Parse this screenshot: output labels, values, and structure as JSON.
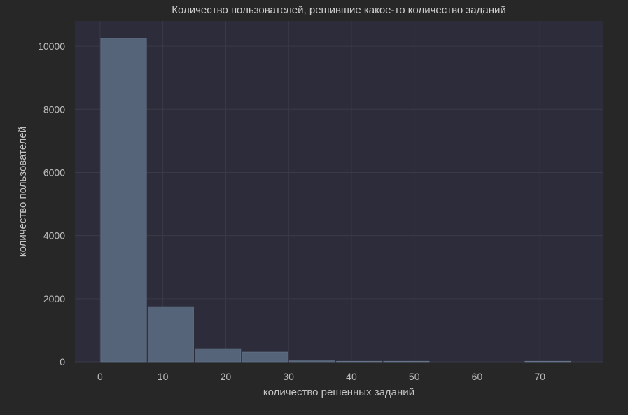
{
  "colors": {
    "figure_background": "#272727",
    "plot_background": "#2c2c3a",
    "grid": "#3a3a48",
    "bar_fill": "#556479",
    "bar_edge": "#6a7a90",
    "text": "#c4c4c4"
  },
  "chart_data": {
    "type": "bar",
    "title": "Количество пользователей, решившие какое-то количество заданий",
    "xlabel": "количество решенных заданий",
    "ylabel": "количество пользователей",
    "xlim": [
      -4,
      80
    ],
    "ylim": [
      0,
      10800
    ],
    "xticks": [
      0,
      10,
      20,
      30,
      40,
      50,
      60,
      70
    ],
    "yticks": [
      0,
      2000,
      4000,
      6000,
      8000,
      10000
    ],
    "grid": true,
    "legend": "none",
    "bins": [
      {
        "x0": 0,
        "x1": 7.5,
        "count": 10250
      },
      {
        "x0": 7.5,
        "x1": 15,
        "count": 1750
      },
      {
        "x0": 15,
        "x1": 22.5,
        "count": 420
      },
      {
        "x0": 22.5,
        "x1": 30,
        "count": 310
      },
      {
        "x0": 30,
        "x1": 37.5,
        "count": 30
      },
      {
        "x0": 37.5,
        "x1": 45,
        "count": 3
      },
      {
        "x0": 45,
        "x1": 52.5,
        "count": 1
      },
      {
        "x0": 52.5,
        "x1": 60,
        "count": 0
      },
      {
        "x0": 60,
        "x1": 67.5,
        "count": 0
      },
      {
        "x0": 67.5,
        "x1": 75,
        "count": 1
      }
    ]
  }
}
